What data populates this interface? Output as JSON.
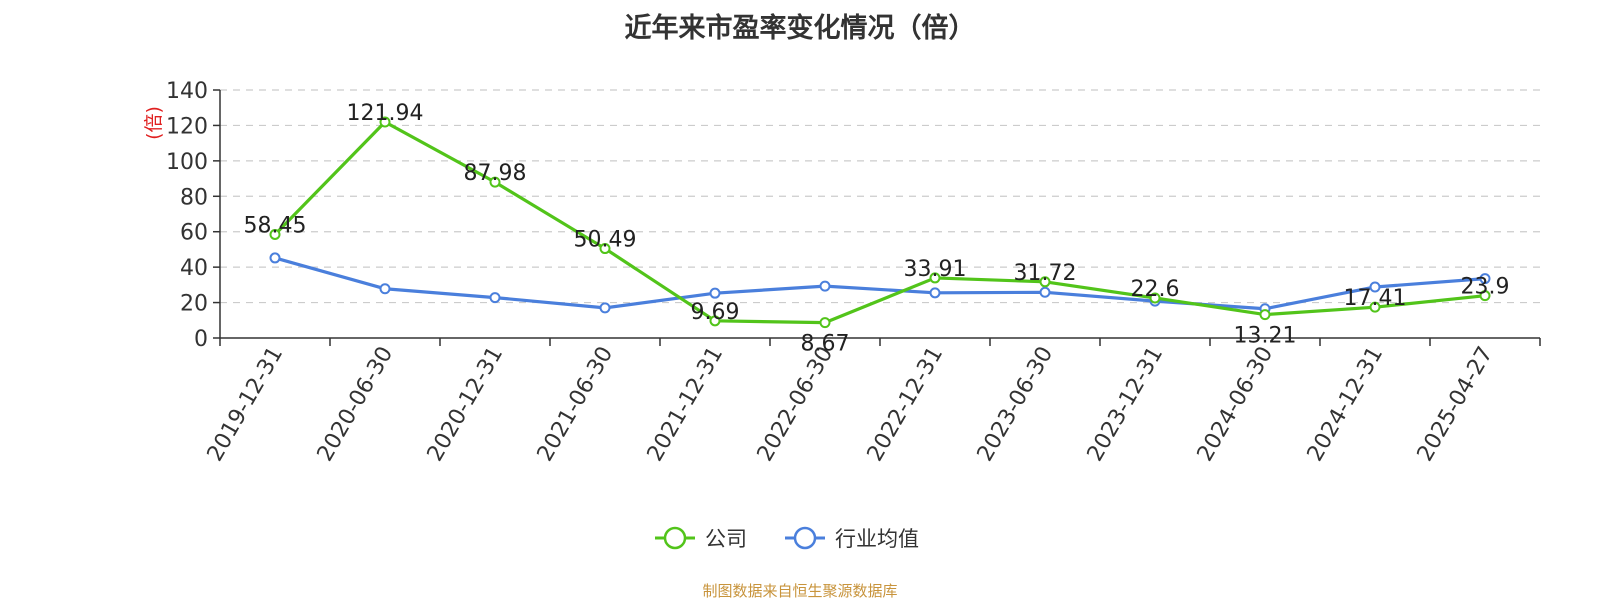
{
  "chart_data": {
    "type": "line",
    "title": "近年来市盈率变化情况（倍）",
    "ylabel": "(倍)",
    "xlabel": "",
    "ylim": [
      0,
      140
    ],
    "yticks": [
      0,
      20,
      40,
      60,
      80,
      100,
      120,
      140
    ],
    "grid": true,
    "legend_position": "bottom",
    "categories": [
      "2019-12-31",
      "2020-06-30",
      "2020-12-31",
      "2021-06-30",
      "2021-12-31",
      "2022-06-30",
      "2022-12-31",
      "2023-06-30",
      "2023-12-31",
      "2024-06-30",
      "2024-12-31",
      "2025-04-27"
    ],
    "series": [
      {
        "name": "公司",
        "color": "#52c41a",
        "values": [
          58.45,
          121.94,
          87.98,
          50.49,
          9.69,
          8.67,
          33.91,
          31.72,
          22.6,
          13.21,
          17.41,
          23.9
        ],
        "labels": [
          "58.45",
          "121.94",
          "87.98",
          "50.49",
          "9.69",
          "8.67",
          "33.91",
          "31.72",
          "22.6",
          "13.21",
          "17.41",
          "23.9"
        ]
      },
      {
        "name": "行业均值",
        "color": "#4a7fdc",
        "values": [
          45.2,
          27.8,
          22.8,
          17.0,
          25.3,
          29.3,
          25.5,
          25.8,
          20.8,
          16.5,
          28.8,
          33.5
        ]
      }
    ]
  },
  "source": "制图数据来自恒生聚源数据库"
}
